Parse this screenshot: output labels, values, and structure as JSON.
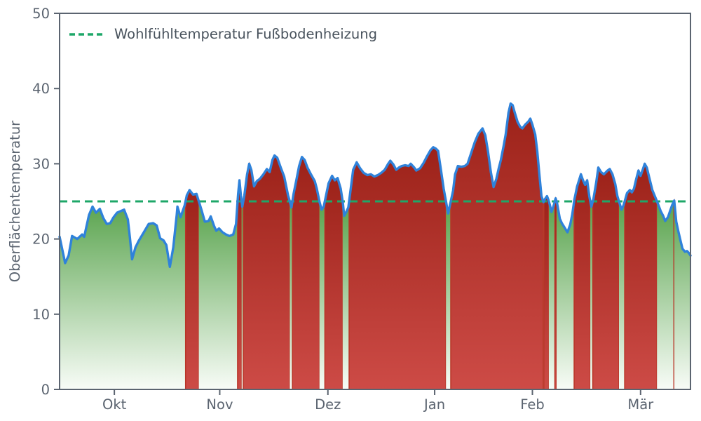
{
  "chart_data": {
    "type": "area",
    "title": "",
    "xlabel": "",
    "ylabel": "Oberflächentemperatur",
    "ylim": [
      0,
      50
    ],
    "yticks": [
      0,
      10,
      20,
      30,
      40,
      50
    ],
    "x_domain": [
      0,
      182
    ],
    "xticks": [
      {
        "label": "Okt",
        "day": 15.8
      },
      {
        "label": "Nov",
        "day": 46.2
      },
      {
        "label": "Dez",
        "day": 77.4
      },
      {
        "label": "Jan",
        "day": 108.2
      },
      {
        "label": "Feb",
        "day": 136.4
      },
      {
        "label": "Mär",
        "day": 167.6
      }
    ],
    "grid": false,
    "legend_position": "upper-left",
    "axis_color": "#5b6470",
    "threshold": {
      "value": 25,
      "label": "Wohlfühltemperatur Fußbodenheizung",
      "color": "#1ea768",
      "style": "dashed"
    },
    "series": {
      "name": "Oberflächentemperatur",
      "line_color": "#2f82da",
      "points": [
        [
          0,
          20.3
        ],
        [
          1.6,
          16.8
        ],
        [
          2.6,
          17.8
        ],
        [
          3.6,
          20.4
        ],
        [
          5.1,
          20.0
        ],
        [
          6.5,
          20.6
        ],
        [
          7.1,
          20.3
        ],
        [
          8.5,
          23.2
        ],
        [
          9.5,
          24.3
        ],
        [
          10.5,
          23.5
        ],
        [
          11.6,
          24.0
        ],
        [
          12.6,
          22.8
        ],
        [
          13.6,
          22.0
        ],
        [
          14.6,
          22.1
        ],
        [
          15.6,
          22.9
        ],
        [
          16.6,
          23.5
        ],
        [
          17.6,
          23.7
        ],
        [
          18.6,
          23.9
        ],
        [
          19.7,
          22.6
        ],
        [
          20.3,
          20.1
        ],
        [
          20.9,
          17.3
        ],
        [
          21.9,
          18.9
        ],
        [
          22.9,
          19.8
        ],
        [
          24.3,
          20.9
        ],
        [
          25.7,
          22.0
        ],
        [
          27,
          22.1
        ],
        [
          28,
          21.8
        ],
        [
          29,
          20.1
        ],
        [
          30,
          19.8
        ],
        [
          30.8,
          19.2
        ],
        [
          31.8,
          16.3
        ],
        [
          32.8,
          18.9
        ],
        [
          33.8,
          23.2
        ],
        [
          34,
          24.3
        ],
        [
          34.9,
          22.9
        ],
        [
          36.1,
          24.5
        ],
        [
          36.7,
          25.8
        ],
        [
          37.5,
          26.5
        ],
        [
          38.5,
          25.9
        ],
        [
          39.5,
          26.0
        ],
        [
          40.1,
          25.1
        ],
        [
          40.9,
          23.9
        ],
        [
          41.9,
          22.3
        ],
        [
          43,
          22.4
        ],
        [
          43.6,
          23.0
        ],
        [
          44.6,
          21.7
        ],
        [
          45.2,
          21.1
        ],
        [
          46,
          21.4
        ],
        [
          47,
          20.9
        ],
        [
          48,
          20.6
        ],
        [
          49,
          20.4
        ],
        [
          50.1,
          20.6
        ],
        [
          50.9,
          22.0
        ],
        [
          51.5,
          26.0
        ],
        [
          51.9,
          27.8
        ],
        [
          52.3,
          25.8
        ],
        [
          52.7,
          24.3
        ],
        [
          53.3,
          25.8
        ],
        [
          54.1,
          28.6
        ],
        [
          54.7,
          30.0
        ],
        [
          55.3,
          29.2
        ],
        [
          56.1,
          27.0
        ],
        [
          56.9,
          27.7
        ],
        [
          57.8,
          28.0
        ],
        [
          58.8,
          28.6
        ],
        [
          59.8,
          29.3
        ],
        [
          60.6,
          28.9
        ],
        [
          61.4,
          30.5
        ],
        [
          62,
          31.1
        ],
        [
          62.8,
          30.8
        ],
        [
          63.8,
          29.5
        ],
        [
          64.8,
          28.3
        ],
        [
          65.9,
          25.8
        ],
        [
          66.9,
          24.2
        ],
        [
          67.5,
          26.0
        ],
        [
          68.3,
          27.8
        ],
        [
          69.1,
          29.7
        ],
        [
          69.9,
          30.9
        ],
        [
          70.7,
          30.5
        ],
        [
          71.5,
          29.5
        ],
        [
          72.5,
          28.6
        ],
        [
          73.6,
          27.7
        ],
        [
          74.2,
          26.7
        ],
        [
          75,
          24.9
        ],
        [
          75.6,
          23.9
        ],
        [
          76.2,
          24.3
        ],
        [
          77.6,
          27.4
        ],
        [
          78.6,
          28.4
        ],
        [
          79.4,
          27.8
        ],
        [
          80.2,
          28.1
        ],
        [
          81.1,
          26.7
        ],
        [
          81.7,
          24.9
        ],
        [
          82.1,
          23.1
        ],
        [
          82.7,
          23.6
        ],
        [
          83.3,
          24.2
        ],
        [
          84.7,
          29.2
        ],
        [
          85.7,
          30.2
        ],
        [
          86.7,
          29.4
        ],
        [
          87.7,
          28.8
        ],
        [
          88.8,
          28.5
        ],
        [
          89.8,
          28.6
        ],
        [
          90.8,
          28.3
        ],
        [
          91.8,
          28.5
        ],
        [
          92.8,
          28.8
        ],
        [
          93.8,
          29.2
        ],
        [
          94.8,
          30.0
        ],
        [
          95.4,
          30.4
        ],
        [
          96.3,
          29.9
        ],
        [
          97.1,
          29.2
        ],
        [
          97.9,
          29.5
        ],
        [
          98.7,
          29.7
        ],
        [
          99.7,
          29.8
        ],
        [
          100.7,
          29.7
        ],
        [
          101.3,
          30.0
        ],
        [
          102.3,
          29.5
        ],
        [
          102.9,
          29.1
        ],
        [
          104,
          29.4
        ],
        [
          105,
          30.1
        ],
        [
          106,
          31.0
        ],
        [
          107,
          31.8
        ],
        [
          107.8,
          32.2
        ],
        [
          108.6,
          32.0
        ],
        [
          109.2,
          31.7
        ],
        [
          110,
          29.2
        ],
        [
          110.8,
          26.7
        ],
        [
          112.1,
          23.4
        ],
        [
          113.5,
          26.4
        ],
        [
          114.1,
          28.6
        ],
        [
          114.9,
          29.7
        ],
        [
          115.9,
          29.6
        ],
        [
          116.9,
          29.7
        ],
        [
          117.7,
          30.0
        ],
        [
          118.7,
          31.4
        ],
        [
          119.8,
          32.9
        ],
        [
          120.8,
          34.0
        ],
        [
          122,
          34.7
        ],
        [
          122.8,
          33.8
        ],
        [
          123.6,
          31.6
        ],
        [
          124.4,
          28.9
        ],
        [
          125.2,
          26.9
        ],
        [
          126,
          28.0
        ],
        [
          126.7,
          29.4
        ],
        [
          127.3,
          30.5
        ],
        [
          128.1,
          32.4
        ],
        [
          128.7,
          33.9
        ],
        [
          129.5,
          36.8
        ],
        [
          130.1,
          38.0
        ],
        [
          130.7,
          37.8
        ],
        [
          131.3,
          36.8
        ],
        [
          132.1,
          35.6
        ],
        [
          132.9,
          34.9
        ],
        [
          133.5,
          34.7
        ],
        [
          134.3,
          35.2
        ],
        [
          135.2,
          35.6
        ],
        [
          135.8,
          36.0
        ],
        [
          136.4,
          35.2
        ],
        [
          137.2,
          33.9
        ],
        [
          137.8,
          31.7
        ],
        [
          138.4,
          28.6
        ],
        [
          139,
          25.7
        ],
        [
          139.6,
          24.9
        ],
        [
          140,
          25.3
        ],
        [
          140.6,
          25.7
        ],
        [
          141,
          25.2
        ],
        [
          141.4,
          24.6
        ],
        [
          141.9,
          23.6
        ],
        [
          142.5,
          24.4
        ],
        [
          143.1,
          25.4
        ],
        [
          143.5,
          24.8
        ],
        [
          144.3,
          22.7
        ],
        [
          144.9,
          22.1
        ],
        [
          145.7,
          21.5
        ],
        [
          146.5,
          20.9
        ],
        [
          147.3,
          21.9
        ],
        [
          147.9,
          23.3
        ],
        [
          148.5,
          25.2
        ],
        [
          149.3,
          27.0
        ],
        [
          150.4,
          28.6
        ],
        [
          151,
          27.8
        ],
        [
          151.6,
          27.2
        ],
        [
          152.2,
          27.8
        ],
        [
          152.8,
          25.7
        ],
        [
          153.4,
          24.3
        ],
        [
          154,
          25.3
        ],
        [
          154.8,
          27.5
        ],
        [
          155.4,
          29.5
        ],
        [
          156.2,
          28.9
        ],
        [
          157,
          28.6
        ],
        [
          158.1,
          29.1
        ],
        [
          158.7,
          29.3
        ],
        [
          159.5,
          28.6
        ],
        [
          160.3,
          27.3
        ],
        [
          160.9,
          25.7
        ],
        [
          162.1,
          23.9
        ],
        [
          162.7,
          24.5
        ],
        [
          163.7,
          26.1
        ],
        [
          164.5,
          26.5
        ],
        [
          165.1,
          26.2
        ],
        [
          165.7,
          26.7
        ],
        [
          166.3,
          27.9
        ],
        [
          167,
          29.1
        ],
        [
          167.6,
          28.4
        ],
        [
          168.2,
          29.2
        ],
        [
          168.8,
          30.0
        ],
        [
          169.4,
          29.5
        ],
        [
          170.2,
          28.0
        ],
        [
          171,
          26.5
        ],
        [
          171.8,
          25.6
        ],
        [
          172.6,
          24.7
        ],
        [
          173.4,
          23.7
        ],
        [
          174.1,
          23.1
        ],
        [
          174.7,
          22.4
        ],
        [
          175.5,
          22.9
        ],
        [
          176.1,
          23.7
        ],
        [
          176.7,
          24.5
        ],
        [
          177.3,
          25.1
        ],
        [
          177.9,
          22.3
        ],
        [
          178.5,
          21.0
        ],
        [
          179.1,
          19.8
        ],
        [
          179.7,
          18.7
        ],
        [
          180.4,
          18.3
        ],
        [
          181,
          18.4
        ],
        [
          181.6,
          18.1
        ],
        [
          182,
          17.8
        ]
      ]
    },
    "fill": {
      "below_threshold": {
        "top": "#58a34c",
        "bottom": "#f8fcf7"
      },
      "above_threshold": {
        "top": "#9c2219",
        "bottom": "#cd4b46",
        "edge": "#b83527"
      }
    }
  }
}
